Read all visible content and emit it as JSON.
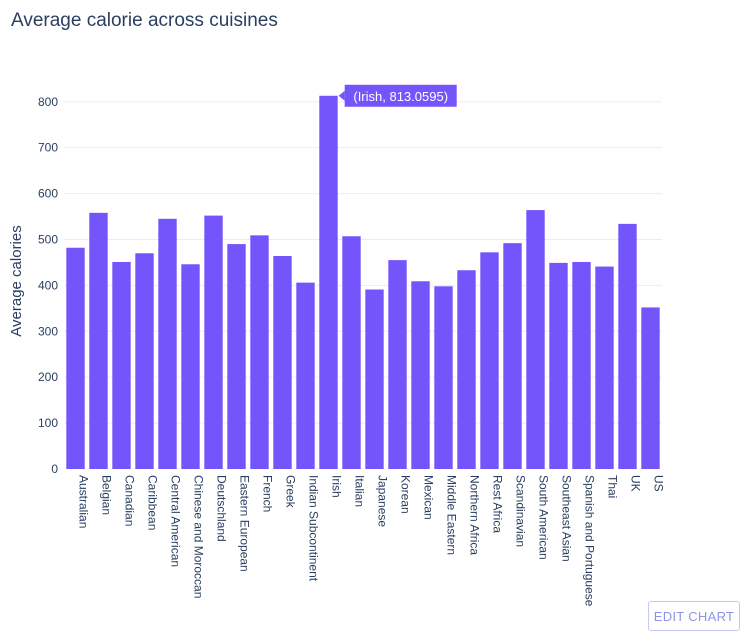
{
  "title": "Average calorie across cuisines",
  "edit_button_label": "EDIT CHART",
  "tooltip": {
    "category": "Irish",
    "text": "(Irish, 813.0595)"
  },
  "colors": {
    "bar": "#7355fb",
    "tooltip_bg": "#7355fb",
    "text": "#2a3f5f",
    "grid": "#ebedf2",
    "button_text": "#8c95e8",
    "button_border": "#c3c8f5"
  },
  "chart_data": {
    "type": "bar",
    "title": "Average calorie across cuisines",
    "xlabel": "",
    "ylabel": "Average calories",
    "ylim": [
      0,
      830
    ],
    "yticks": [
      0,
      100,
      200,
      300,
      400,
      500,
      600,
      700,
      800
    ],
    "grid": true,
    "categories": [
      "Australian",
      "Belgian",
      "Canadian",
      "Caribbean",
      "Central American",
      "Chinese and Moroccan",
      "Deutschland",
      "Eastern European",
      "French",
      "Greek",
      "Indian Subcontinent",
      "Irish",
      "Italian",
      "Japanese",
      "Korean",
      "Mexican",
      "Middle Eastern",
      "Northern Africa",
      "Rest Africa",
      "Scandinavian",
      "South American",
      "Southeast Asian",
      "Spanish and Portuguese",
      "Thai",
      "UK",
      "US"
    ],
    "values": [
      482,
      558,
      451,
      470,
      545,
      446,
      552,
      490,
      509,
      464,
      406,
      813.0595,
      507,
      391,
      455,
      409,
      398,
      433,
      472,
      492,
      564,
      449,
      451,
      441,
      534,
      352
    ]
  }
}
